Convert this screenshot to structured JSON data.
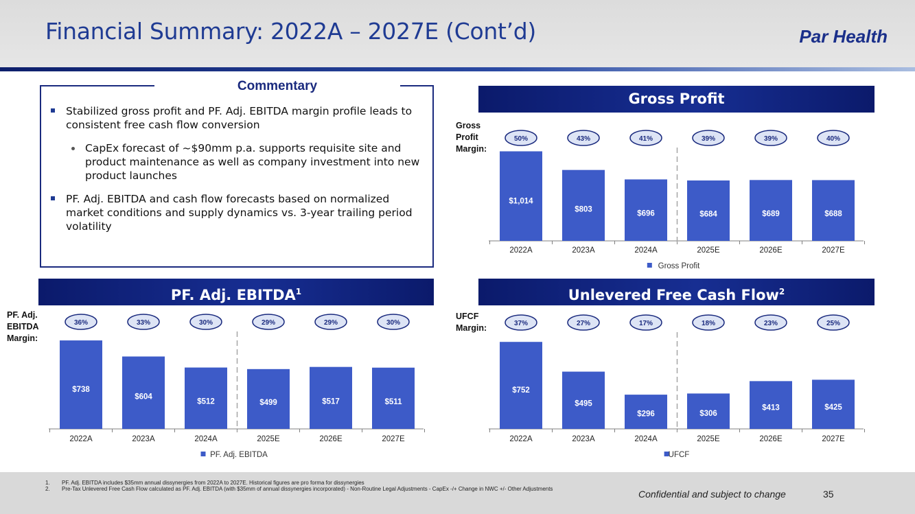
{
  "header": {
    "title": "Financial Summary: 2022A – 2027E (Cont’d)",
    "brand": "Par Health"
  },
  "commentary": {
    "title": "Commentary",
    "bullets": [
      "Stabilized gross profit and PF. Adj. EBITDA margin profile leads to consistent free cash flow conversion",
      "CapEx forecast of ~$90mm p.a. supports requisite site and product maintenance as well as company investment into new product launches",
      "PF. Adj. EBITDA and cash flow forecasts based on normalized market conditions and supply dynamics vs. 3-year trailing period volatility"
    ]
  },
  "colors": {
    "bar": "#3d5bc8",
    "header": "#172e92",
    "ellipse_text": "#1a2a7e"
  },
  "chart_data": [
    {
      "id": "gross_profit",
      "type": "bar",
      "title": "Gross Profit",
      "title_sup": "",
      "margin_label": [
        "Gross",
        "Profit",
        "Margin:"
      ],
      "categories": [
        "2022A",
        "2023A",
        "2024A",
        "2025E",
        "2026E",
        "2027E"
      ],
      "values": [
        1014,
        803,
        696,
        684,
        689,
        688
      ],
      "value_labels": [
        "$1,014",
        "$803",
        "$696",
        "$684",
        "$689",
        "$688"
      ],
      "margins": [
        "50%",
        "43%",
        "41%",
        "39%",
        "39%",
        "40%"
      ],
      "legend": "Gross Profit",
      "ymax": 1150,
      "forecast_divider_after": "2024A"
    },
    {
      "id": "ebitda",
      "type": "bar",
      "title": "PF. Adj. EBITDA",
      "title_sup": "1",
      "margin_label": [
        "PF. Adj.",
        "EBITDA",
        "Margin:"
      ],
      "categories": [
        "2022A",
        "2023A",
        "2024A",
        "2025E",
        "2026E",
        "2027E"
      ],
      "values": [
        738,
        604,
        512,
        499,
        517,
        511
      ],
      "value_labels": [
        "$738",
        "$604",
        "$512",
        "$499",
        "$517",
        "$511"
      ],
      "margins": [
        "36%",
        "33%",
        "30%",
        "29%",
        "29%",
        "30%"
      ],
      "legend": "PF. Adj. EBITDA",
      "ymax": 830,
      "forecast_divider_after": "2024A"
    },
    {
      "id": "ufcf",
      "type": "bar",
      "title": "Unlevered Free Cash Flow",
      "title_sup": "2",
      "margin_label": [
        "UFCF",
        "Margin:"
      ],
      "categories": [
        "2022A",
        "2023A",
        "2024A",
        "2025E",
        "2026E",
        "2027E"
      ],
      "values": [
        752,
        495,
        296,
        306,
        413,
        425
      ],
      "value_labels": [
        "$752",
        "$495",
        "$296",
        "$306",
        "$413",
        "$425"
      ],
      "margins": [
        "37%",
        "27%",
        "17%",
        "18%",
        "23%",
        "25%"
      ],
      "legend": "UFCF",
      "ymax": 860,
      "forecast_divider_after": "2024A"
    }
  ],
  "footer": {
    "notes": [
      {
        "num": "1.",
        "text": "PF. Adj. EBITDA includes $35mm annual dissynergies from 2022A to 2027E. Historical figures are pro forma for dissynergies"
      },
      {
        "num": "2.",
        "text": "Pre-Tax Unlevered Free Cash Flow calculated as PF. Adj. EBITDA (with $35mm of annual dissynergies incorporated) - Non-Routine Legal Adjustments - CapEx -/+ Change in NWC +/- Other Adjustments"
      }
    ],
    "confidential": "Confidential and subject to change",
    "page": "35"
  }
}
